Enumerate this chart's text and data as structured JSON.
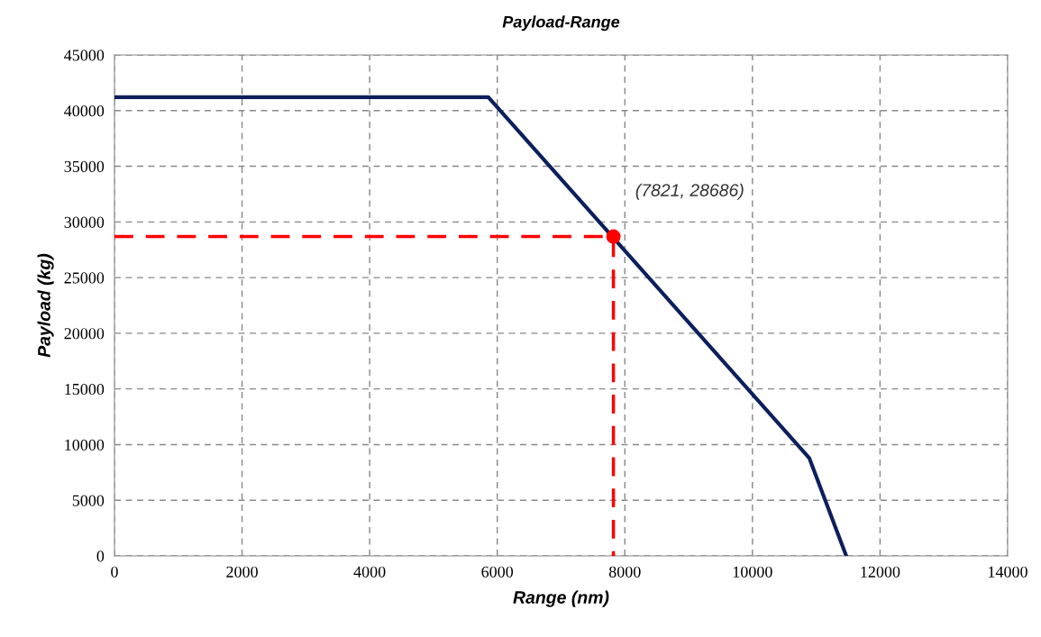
{
  "chart_data": {
    "type": "line",
    "title": "Payload-Range",
    "xlabel": "Range (nm)",
    "ylabel": "Payload (kg)",
    "xlim": [
      0,
      14000
    ],
    "xticks": [
      0,
      2000,
      4000,
      6000,
      8000,
      10000,
      12000,
      14000
    ],
    "ylim": [
      0,
      45000
    ],
    "yticks": [
      0,
      5000,
      10000,
      15000,
      20000,
      25000,
      30000,
      35000,
      40000,
      45000
    ],
    "grid": true,
    "legend": false,
    "series": [
      {
        "color": "#0d1f5c",
        "line_style": "solid",
        "x": [
          0,
          5860,
          10890,
          11470
        ],
        "values": [
          41200,
          41200,
          8800,
          0
        ]
      },
      {
        "type": "line",
        "color": "#ff0000",
        "line_style": "dashed",
        "x": [
          0,
          7821,
          7821
        ],
        "values": [
          28686,
          28686,
          0
        ]
      },
      {
        "type": "scatter",
        "color": "#ff0000",
        "marker": "circle",
        "x": [
          7821
        ],
        "values": [
          28686
        ]
      }
    ],
    "annotations": [
      "(7821, 28686)"
    ]
  }
}
